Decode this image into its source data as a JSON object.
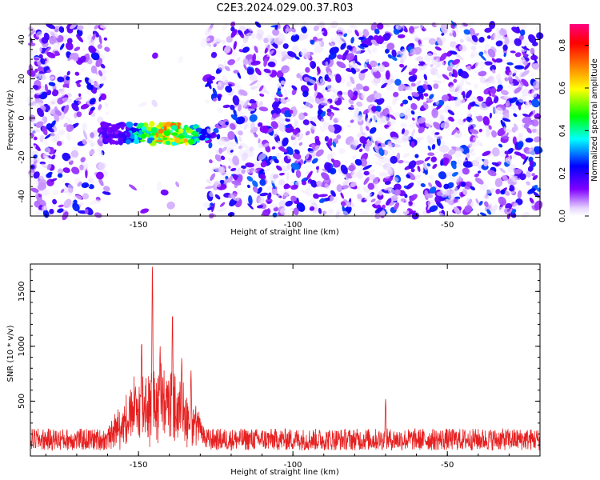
{
  "title": "C2E3.2024.029.00.37.R03",
  "chart_data": [
    {
      "type": "heatmap",
      "xlabel": "Height of straight line (km)",
      "ylabel": "Frequency (Hz)",
      "xlim": [
        -185,
        -20
      ],
      "ylim": [
        -50,
        48
      ],
      "x_ticks": [
        -150,
        -100,
        -50
      ],
      "y_ticks": [
        -40,
        -20,
        0,
        20,
        40
      ],
      "colorbar": {
        "label": "Normalized spectral amplitude",
        "range": [
          0.0,
          0.9
        ],
        "ticks": [
          0.0,
          0.2,
          0.4,
          0.6,
          0.8
        ],
        "colors": [
          "#ffffff",
          "#e6d6ff",
          "#8000ff",
          "#0000ff",
          "#00ffff",
          "#00ff00",
          "#ffff00",
          "#ff8000",
          "#ff0000",
          "#ff0080"
        ]
      },
      "signal_band": {
        "x_range": [
          -162,
          -128
        ],
        "freq_center_hz": -8,
        "freq_halfwidth_hz": 5,
        "peak_x": -140,
        "peak_amplitude": 0.85
      },
      "blank_region": {
        "x_range": [
          -160,
          -128
        ],
        "note": ""
      },
      "grid": false
    },
    {
      "type": "line",
      "xlabel": "Height of straight line (km)",
      "ylabel": "SNR (10 * v/v)",
      "xlim": [
        -185,
        -20
      ],
      "ylim": [
        0,
        1750
      ],
      "x_ticks": [
        -150,
        -100,
        -50
      ],
      "y_ticks": [
        500,
        1000,
        1500
      ],
      "series": [
        {
          "color": "#e62020",
          "baseline": 150,
          "noise_amplitude": 100,
          "peaks": [
            {
              "x": -145.5,
              "y": 1750
            },
            {
              "x": -139,
              "y": 1310
            },
            {
              "x": -149,
              "y": 1050
            },
            {
              "x": -143,
              "y": 1000
            },
            {
              "x": -136,
              "y": 900
            },
            {
              "x": -133,
              "y": 780
            },
            {
              "x": -70,
              "y": 520
            }
          ],
          "envelope_range": [
            -160,
            -128
          ]
        }
      ],
      "grid": false
    }
  ]
}
